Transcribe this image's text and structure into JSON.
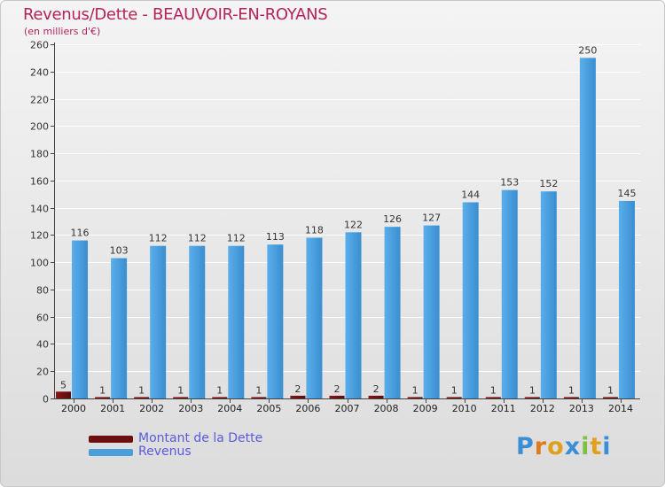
{
  "chart_data": {
    "type": "bar",
    "title": "Revenus/Dette - BEAUVOIR-EN-ROYANS",
    "subtitle": "(en milliers d'€)",
    "categories": [
      "2000",
      "2001",
      "2002",
      "2003",
      "2004",
      "2005",
      "2006",
      "2007",
      "2008",
      "2009",
      "2010",
      "2011",
      "2012",
      "2013",
      "2014"
    ],
    "series": [
      {
        "name": "Montant de la Dette",
        "color": "#6e0f0f",
        "values": [
          5,
          1,
          1,
          1,
          1,
          1,
          2,
          2,
          2,
          1,
          1,
          1,
          1,
          1,
          1
        ]
      },
      {
        "name": "Revenus",
        "color": "#4a9edc",
        "values": [
          116,
          103,
          112,
          112,
          112,
          113,
          118,
          122,
          126,
          127,
          144,
          153,
          152,
          250,
          145
        ]
      }
    ],
    "yticks": [
      0,
      20,
      40,
      60,
      80,
      100,
      120,
      140,
      160,
      180,
      200,
      220,
      240,
      260
    ],
    "ylim": [
      0,
      260
    ],
    "grid": true,
    "legend": "bottom-left"
  },
  "logo": {
    "text": "Proxiti",
    "colors": [
      "#3a8ed6",
      "#e07a1e",
      "#e0a01e",
      "#3a8ed6",
      "#7cc242",
      "#e0a01e",
      "#3a8ed6"
    ]
  }
}
